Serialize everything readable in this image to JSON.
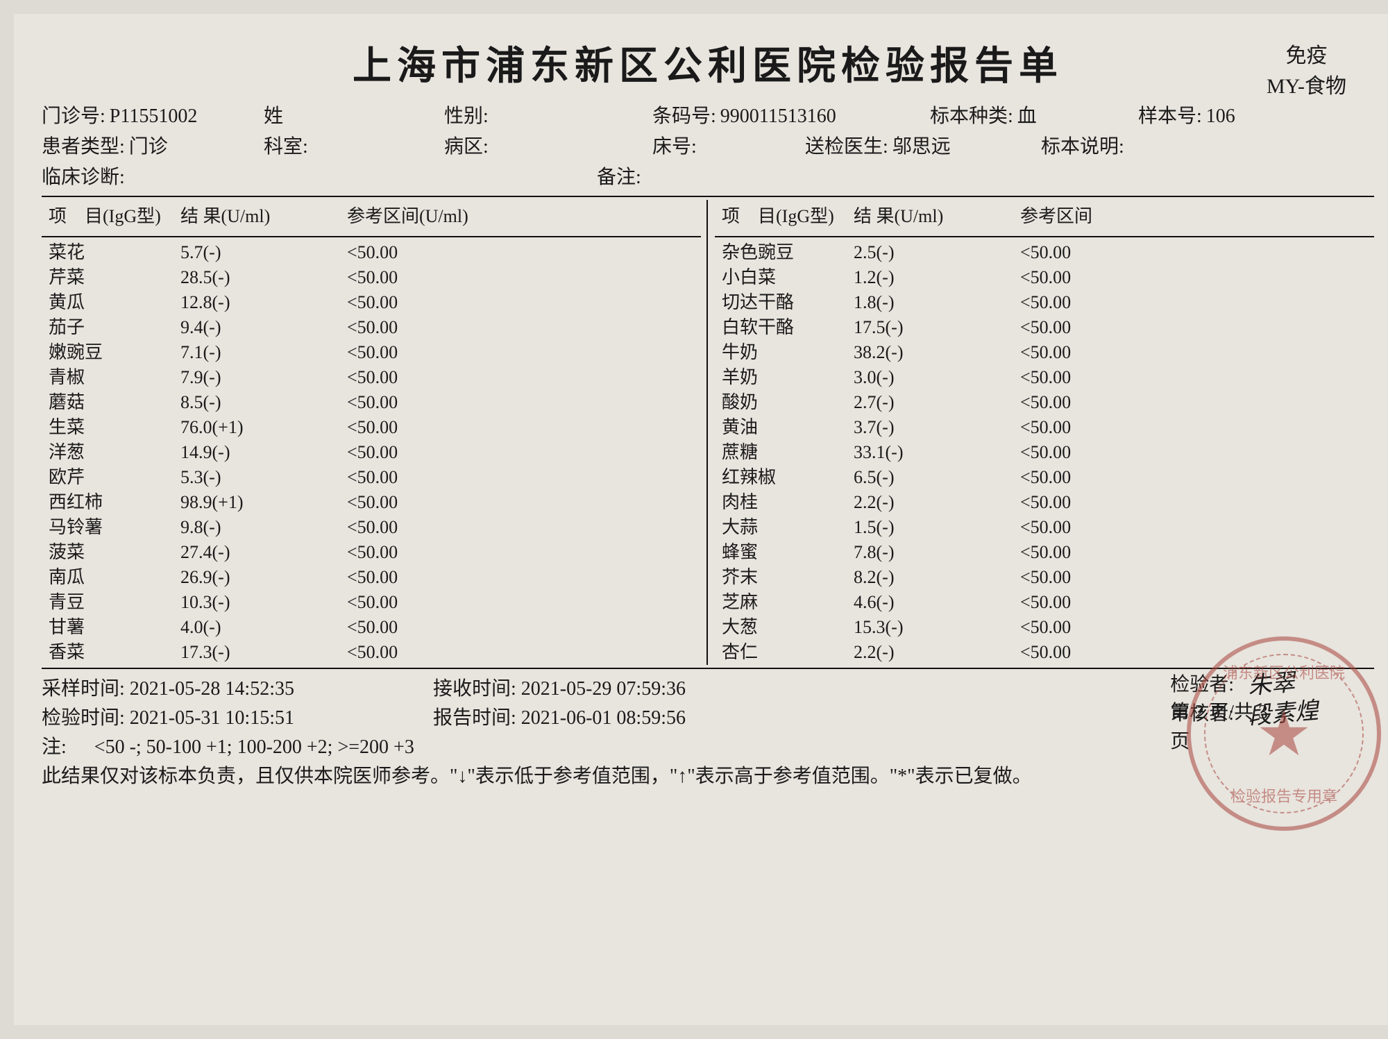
{
  "title": "上海市浦东新区公利医院检验报告单",
  "top_right": {
    "line1": "免疫",
    "line2": "MY-食物"
  },
  "meta": {
    "outpatient_no_label": "门诊号:",
    "outpatient_no": "P11551002",
    "name_label": "姓",
    "name": "",
    "sex_label": "性别:",
    "sex": "",
    "barcode_label": "条码号:",
    "barcode": "990011513160",
    "specimen_type_label": "标本种类:",
    "specimen_type": "血",
    "sample_no_label": "样本号:",
    "sample_no": "106",
    "patient_type_label": "患者类型:",
    "patient_type": "门诊",
    "dept_label": "科室:",
    "dept": "",
    "ward_label": "病区:",
    "ward": "",
    "bed_label": "床号:",
    "bed": "",
    "doctor_label": "送检医生:",
    "doctor": "邬思远",
    "specimen_note_label": "标本说明:",
    "diag_label": "临床诊断:",
    "remark_label": "备注:"
  },
  "headers": {
    "item": "项　目(IgG型)",
    "result": "结 果(U/ml)",
    "range_l": "参考区间(U/ml)",
    "range_r": "参考区间"
  },
  "left_rows": [
    {
      "item": "菜花",
      "result": "5.7(-)",
      "range": "<50.00"
    },
    {
      "item": "芹菜",
      "result": "28.5(-)",
      "range": "<50.00"
    },
    {
      "item": "黄瓜",
      "result": "12.8(-)",
      "range": "<50.00"
    },
    {
      "item": "茄子",
      "result": "9.4(-)",
      "range": "<50.00"
    },
    {
      "item": "嫩豌豆",
      "result": "7.1(-)",
      "range": "<50.00"
    },
    {
      "item": "青椒",
      "result": "7.9(-)",
      "range": "<50.00"
    },
    {
      "item": "蘑菇",
      "result": "8.5(-)",
      "range": "<50.00"
    },
    {
      "item": "生菜",
      "result": "76.0(+1)",
      "range": "<50.00"
    },
    {
      "item": "洋葱",
      "result": "14.9(-)",
      "range": "<50.00"
    },
    {
      "item": "欧芹",
      "result": "5.3(-)",
      "range": "<50.00"
    },
    {
      "item": "西红柿",
      "result": "98.9(+1)",
      "range": "<50.00"
    },
    {
      "item": "马铃薯",
      "result": "9.8(-)",
      "range": "<50.00"
    },
    {
      "item": "菠菜",
      "result": "27.4(-)",
      "range": "<50.00"
    },
    {
      "item": "南瓜",
      "result": "26.9(-)",
      "range": "<50.00"
    },
    {
      "item": "青豆",
      "result": "10.3(-)",
      "range": "<50.00"
    },
    {
      "item": "甘薯",
      "result": "4.0(-)",
      "range": "<50.00"
    },
    {
      "item": "香菜",
      "result": "17.3(-)",
      "range": "<50.00"
    }
  ],
  "right_rows": [
    {
      "item": "杂色豌豆",
      "result": "2.5(-)",
      "range": "<50.00"
    },
    {
      "item": "小白菜",
      "result": "1.2(-)",
      "range": "<50.00"
    },
    {
      "item": "切达干酪",
      "result": "1.8(-)",
      "range": "<50.00"
    },
    {
      "item": "白软干酪",
      "result": "17.5(-)",
      "range": "<50.00"
    },
    {
      "item": "牛奶",
      "result": "38.2(-)",
      "range": "<50.00"
    },
    {
      "item": "羊奶",
      "result": "3.0(-)",
      "range": "<50.00"
    },
    {
      "item": "酸奶",
      "result": "2.7(-)",
      "range": "<50.00"
    },
    {
      "item": "黄油",
      "result": "3.7(-)",
      "range": "<50.00"
    },
    {
      "item": "蔗糖",
      "result": "33.1(-)",
      "range": "<50.00"
    },
    {
      "item": "红辣椒",
      "result": "6.5(-)",
      "range": "<50.00"
    },
    {
      "item": "肉桂",
      "result": "2.2(-)",
      "range": "<50.00"
    },
    {
      "item": "大蒜",
      "result": "1.5(-)",
      "range": "<50.00"
    },
    {
      "item": "蜂蜜",
      "result": "7.8(-)",
      "range": "<50.00"
    },
    {
      "item": "芥末",
      "result": "8.2(-)",
      "range": "<50.00"
    },
    {
      "item": "芝麻",
      "result": "4.6(-)",
      "range": "<50.00"
    },
    {
      "item": "大葱",
      "result": "15.3(-)",
      "range": "<50.00"
    },
    {
      "item": "杏仁",
      "result": "2.2(-)",
      "range": "<50.00"
    }
  ],
  "footer": {
    "sample_time_label": "采样时间:",
    "sample_time": "2021-05-28 14:52:35",
    "recv_time_label": "接收时间:",
    "recv_time": "2021-05-29 07:59:36",
    "test_time_label": "检验时间:",
    "test_time": "2021-05-31 10:15:51",
    "report_time_label": "报告时间:",
    "report_time": "2021-06-01 08:59:56",
    "tester_label": "检验者:",
    "reviewer_label": "审核者:",
    "page_info": "第 2 页/共 3 页",
    "note_label": "注:",
    "levels": "<50  -;    50-100 +1;    100-200 +2;    >=200 +3",
    "disclaimer": "此结果仅对该标本负责，且仅供本院医师参考。\"↓\"表示低于参考值范围，\"↑\"表示高于参考值范围。\"*\"表示已复做。"
  },
  "stamp": {
    "top": "浦东新区公利医院",
    "bottom": "检验报告专用章"
  }
}
